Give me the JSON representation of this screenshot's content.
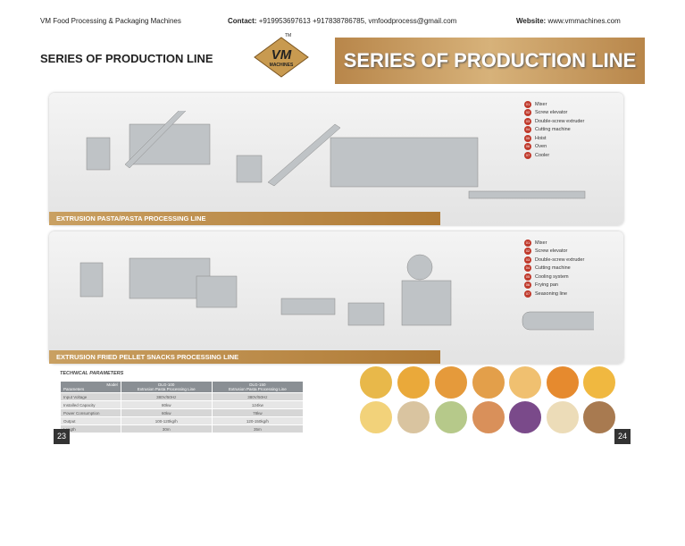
{
  "header": {
    "company": "VM Food Processing & Packaging Machines",
    "contact_label": "Contact:",
    "contact": "+919953697613 +917838786785, vmfoodprocess@gmail.com",
    "website_label": "Website:",
    "website": "www.vmmachines.com"
  },
  "title_left": "SERIES OF PRODUCTION LINE",
  "logo": {
    "text": "VM",
    "sub": "MACHINES",
    "tm": "TM"
  },
  "banner": "SERIES OF PRODUCTION LINE",
  "lines": [
    {
      "caption": "EXTRUSION PASTA/PASTA PROCESSING LINE",
      "legend": [
        {
          "num": "01",
          "label": "Mixer"
        },
        {
          "num": "02",
          "label": "Screw elevator"
        },
        {
          "num": "03",
          "label": "Double-screw extruder"
        },
        {
          "num": "04",
          "label": "Cutting machine"
        },
        {
          "num": "05",
          "label": "Hoist"
        },
        {
          "num": "06",
          "label": "Oven"
        },
        {
          "num": "07",
          "label": "Cooler"
        }
      ]
    },
    {
      "caption": "EXTRUSION FRIED PELLET SNACKS PROCESSING LINE",
      "legend": [
        {
          "num": "01",
          "label": "Mixer"
        },
        {
          "num": "02",
          "label": "Screw elevator"
        },
        {
          "num": "03",
          "label": "Double-screw extruder"
        },
        {
          "num": "04",
          "label": "Cutting machine"
        },
        {
          "num": "05",
          "label": "Cooling system"
        },
        {
          "num": "06",
          "label": "Frying pan"
        },
        {
          "num": "07",
          "label": "Seasoning line"
        }
      ]
    }
  ],
  "table": {
    "title": "TECHNICAL PARAMETERS",
    "corner_top": "Model",
    "corner_bottom": "Parameters",
    "columns": [
      [
        "DLG-100",
        "Extrusion Pasta Processing Line"
      ],
      [
        "DLG-150",
        "Extrusion Pasta Processing Line"
      ]
    ],
    "rows": [
      [
        "Input Voltage",
        "380V/50Hz",
        "380V/50Hz"
      ],
      [
        "Installed Capacity",
        "80kw",
        "124kw"
      ],
      [
        "Power Consumption",
        "60kw",
        "78kw"
      ],
      [
        "Output",
        "100-120kg/h",
        "120-150kg/h"
      ],
      [
        "Length",
        "30m",
        "35m"
      ]
    ]
  },
  "page_numbers": [
    "23",
    "24"
  ]
}
